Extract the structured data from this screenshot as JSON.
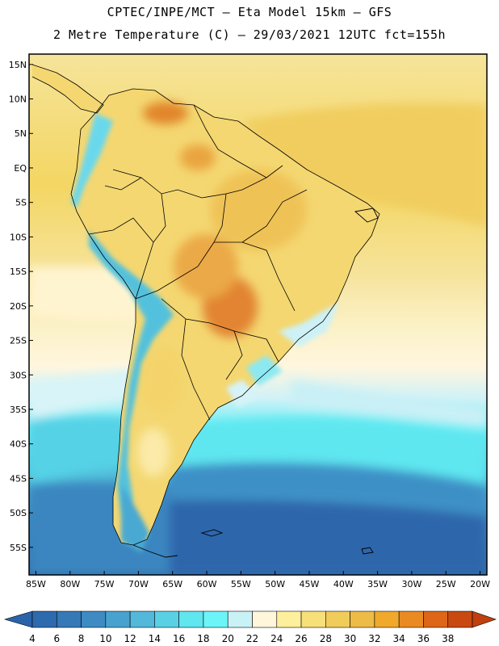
{
  "title_line1": "CPTEC/INPE/MCT –  Eta Model 15km – GFS",
  "title_line2": "2 Metre Temperature (C) – 29/03/2021 12UTC fct=155h",
  "lat_ticks": [
    {
      "value": 15,
      "label": "15N"
    },
    {
      "value": 10,
      "label": "10N"
    },
    {
      "value": 5,
      "label": "5N"
    },
    {
      "value": 0,
      "label": "EQ"
    },
    {
      "value": -5,
      "label": "5S"
    },
    {
      "value": -10,
      "label": "10S"
    },
    {
      "value": -15,
      "label": "15S"
    },
    {
      "value": -20,
      "label": "20S"
    },
    {
      "value": -25,
      "label": "25S"
    },
    {
      "value": -30,
      "label": "30S"
    },
    {
      "value": -35,
      "label": "35S"
    },
    {
      "value": -40,
      "label": "40S"
    },
    {
      "value": -45,
      "label": "45S"
    },
    {
      "value": -50,
      "label": "50S"
    },
    {
      "value": -55,
      "label": "55S"
    }
  ],
  "lon_ticks": [
    {
      "value": -85,
      "label": "85W"
    },
    {
      "value": -80,
      "label": "80W"
    },
    {
      "value": -75,
      "label": "75W"
    },
    {
      "value": -70,
      "label": "70W"
    },
    {
      "value": -65,
      "label": "65W"
    },
    {
      "value": -60,
      "label": "60W"
    },
    {
      "value": -55,
      "label": "55W"
    },
    {
      "value": -50,
      "label": "50W"
    },
    {
      "value": -45,
      "label": "45W"
    },
    {
      "value": -40,
      "label": "40W"
    },
    {
      "value": -35,
      "label": "35W"
    },
    {
      "value": -30,
      "label": "30W"
    },
    {
      "value": -25,
      "label": "25W"
    },
    {
      "value": -20,
      "label": "20W"
    }
  ],
  "colorbar": {
    "labels": [
      "4",
      "6",
      "8",
      "10",
      "12",
      "14",
      "16",
      "18",
      "20",
      "22",
      "24",
      "26",
      "28",
      "30",
      "32",
      "34",
      "36",
      "38"
    ],
    "under_color": "#2b63a8",
    "over_color": "#c0400e",
    "colors": [
      "#2e6aae",
      "#3579b6",
      "#3d8bc2",
      "#48a2cf",
      "#53b8d9",
      "#5ad0e4",
      "#5fe6ef",
      "#6cf5f8",
      "#c9f2f7",
      "#fff6dc",
      "#fdef9c",
      "#f7df7a",
      "#f1cc5b",
      "#ecbc46",
      "#f0a92b",
      "#e98b22",
      "#dd6618",
      "#c84a10"
    ]
  }
}
